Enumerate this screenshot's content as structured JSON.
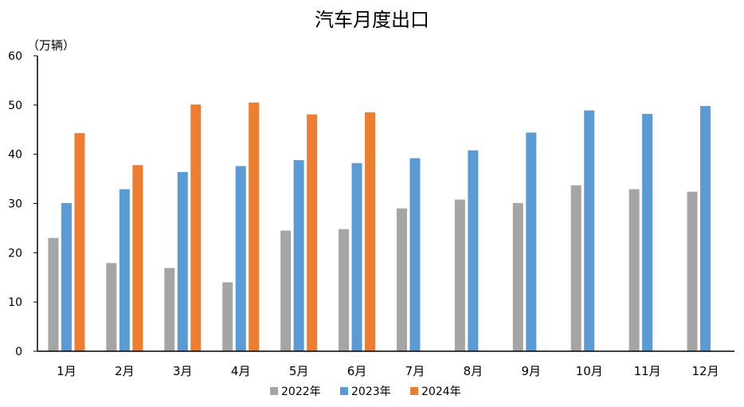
{
  "chart_data": {
    "type": "bar",
    "title": "汽车月度出口",
    "ylabel": "（万辆）",
    "xlabel": "",
    "categories": [
      "1月",
      "2月",
      "3月",
      "4月",
      "5月",
      "6月",
      "7月",
      "8月",
      "9月",
      "10月",
      "11月",
      "12月"
    ],
    "ylim": [
      0,
      60
    ],
    "yticks": [
      0,
      10,
      20,
      30,
      40,
      50,
      60
    ],
    "grid": false,
    "legend_position": "bottom",
    "series": [
      {
        "name": "2022年",
        "color": "#A5A5A5",
        "values": [
          23.0,
          17.9,
          16.9,
          14.0,
          24.5,
          24.8,
          29.0,
          30.8,
          30.1,
          33.7,
          32.9,
          32.4
        ]
      },
      {
        "name": "2023年",
        "color": "#5B9BD5",
        "values": [
          30.1,
          32.9,
          36.4,
          37.6,
          38.8,
          38.2,
          39.2,
          40.8,
          44.4,
          48.9,
          48.2,
          49.8
        ]
      },
      {
        "name": "2024年",
        "color": "#ED7D31",
        "values": [
          44.3,
          37.8,
          50.1,
          50.5,
          48.1,
          48.5,
          null,
          null,
          null,
          null,
          null,
          null
        ]
      }
    ]
  }
}
